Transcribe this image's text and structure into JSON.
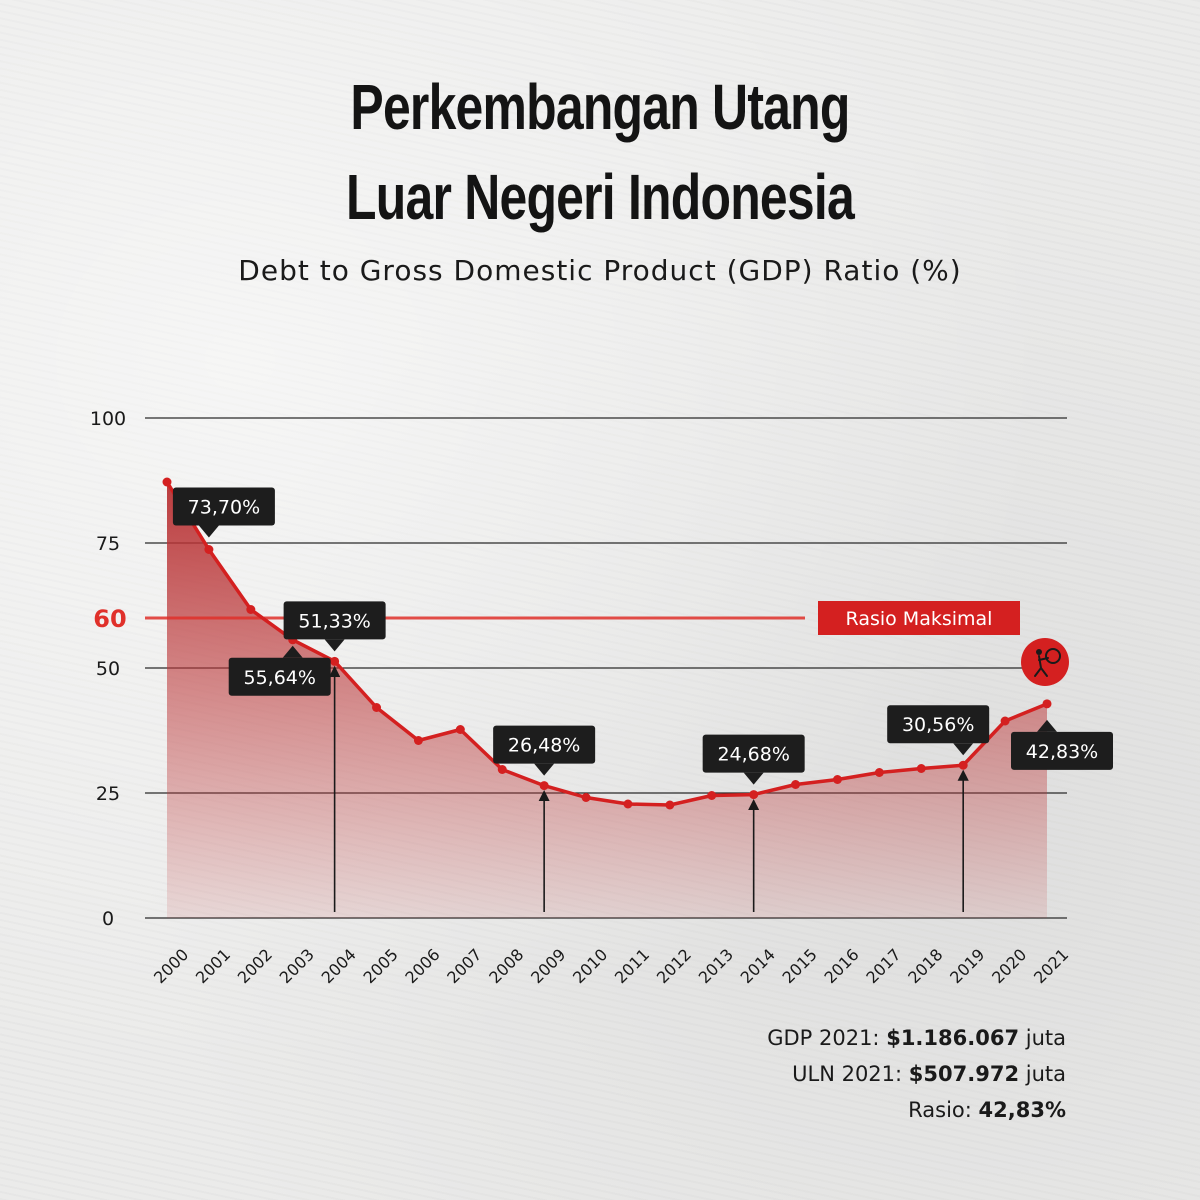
{
  "title_line1": "Perkembangan Utang",
  "title_line2": "Luar Negeri Indonesia",
  "subtitle": "Debt to Gross Domestic Product (GDP) Ratio (%)",
  "chart_data": {
    "type": "area",
    "title": "Debt to Gross Domestic Product (GDP) Ratio (%)",
    "x": [
      "2000",
      "2001",
      "2002",
      "2003",
      "2004",
      "2005",
      "2006",
      "2007",
      "2008",
      "2009",
      "2010",
      "2011",
      "2012",
      "2013",
      "2014",
      "2015",
      "2016",
      "2017",
      "2018",
      "2019",
      "2020",
      "2021"
    ],
    "values": [
      87.2,
      73.7,
      61.7,
      55.64,
      51.33,
      42.1,
      35.5,
      37.7,
      29.7,
      26.48,
      24.1,
      22.8,
      22.6,
      24.5,
      24.68,
      26.7,
      27.7,
      29.1,
      29.9,
      30.56,
      39.4,
      42.83
    ],
    "yticks": [
      0,
      25,
      50,
      75,
      100
    ],
    "ylim": [
      0,
      100
    ],
    "grid": true,
    "threshold": {
      "value": 60,
      "label": "60",
      "tag": "Rasio Maksimal"
    },
    "callouts": [
      {
        "index": 1,
        "text": "73,70%",
        "side": "above"
      },
      {
        "index": 3,
        "text": "55,64%",
        "side": "below"
      },
      {
        "index": 4,
        "text": "51,33%",
        "side": "above"
      },
      {
        "index": 9,
        "text": "26,48%",
        "side": "above"
      },
      {
        "index": 14,
        "text": "24,68%",
        "side": "above"
      },
      {
        "index": 19,
        "text": "30,56%",
        "side": "above"
      },
      {
        "index": 21,
        "text": "42,83%",
        "side": "below"
      }
    ],
    "arrow_years": [
      "2004",
      "2009",
      "2014",
      "2019"
    ],
    "colors": {
      "line": "#d42020",
      "fill": "#c0393a",
      "label_bg": "#1d1d1d",
      "grid": "#2a2a2a",
      "threshold": "#e0302a"
    }
  },
  "footnote": {
    "gdp_label": "GDP 2021:",
    "gdp_value": "$1.186.067",
    "gdp_unit": "juta",
    "uln_label": "ULN 2021:",
    "uln_value": "$507.972",
    "uln_unit": "juta",
    "ratio_label": "Rasio:",
    "ratio_value": "42,83%"
  },
  "icon": "debt-burden-icon"
}
